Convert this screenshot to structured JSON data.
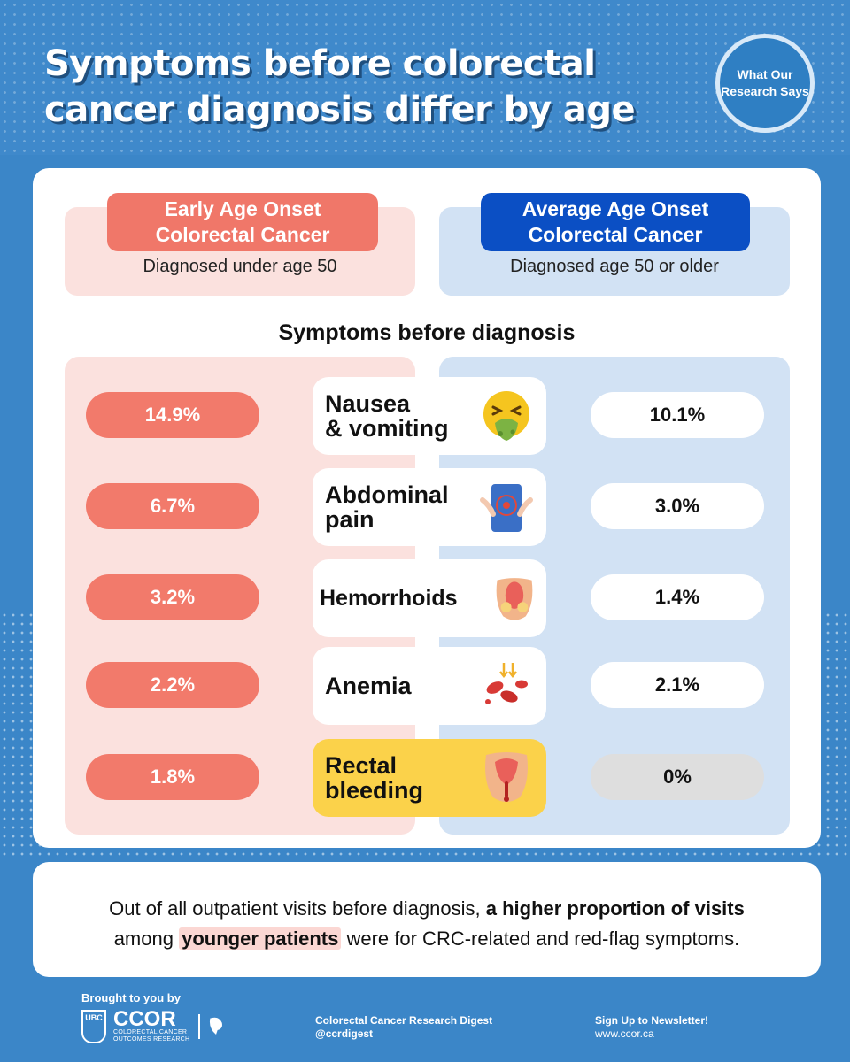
{
  "header": {
    "title_line1": "Symptoms before colorectal",
    "title_line2": "cancer diagnosis differ by age",
    "badge_line1": "What Our",
    "badge_line2": "Research Says"
  },
  "groups": {
    "left": {
      "label_line1": "Early Age Onset",
      "label_line2": "Colorectal Cancer",
      "sub": "Diagnosed under age 50"
    },
    "right": {
      "label_line1": "Average Age Onset",
      "label_line2": "Colorectal Cancer",
      "sub": "Diagnosed age 50 or older"
    }
  },
  "section_title": "Symptoms before diagnosis",
  "symptoms": [
    {
      "line1": "Nausea",
      "line2": "& vomiting",
      "early": "14.9%",
      "average": "10.1%",
      "icon": "nausea-face-icon"
    },
    {
      "line1": "Abdominal",
      "line2": "pain",
      "early": "6.7%",
      "average": "3.0%",
      "icon": "abdominal-pain-icon"
    },
    {
      "line1": "Hemorrhoids",
      "line2": "",
      "early": "3.2%",
      "average": "1.4%",
      "icon": "hemorrhoids-icon"
    },
    {
      "line1": "Anemia",
      "line2": "",
      "early": "2.2%",
      "average": "2.1%",
      "icon": "blood-cells-icon"
    },
    {
      "line1": "Rectal",
      "line2": "bleeding",
      "early": "1.8%",
      "average": "0%",
      "icon": "rectal-bleeding-icon"
    }
  ],
  "note": {
    "part1": "Out of all outpatient visits before diagnosis,",
    "bold1": "a higher proportion of visits",
    "part2": "among",
    "highlight": "younger patients",
    "part3": "were for CRC-related and red-flag symptoms."
  },
  "footer": {
    "brought": "Brought to you by",
    "ubc": "UBC",
    "ccor": "CCOR",
    "ccor_sub1": "COLORECTAL CANCER",
    "ccor_sub2": "OUTCOMES RESEARCH",
    "digest": "Colorectal Cancer Research Digest",
    "handle": "@ccrdigest",
    "signup": "Sign Up to Newsletter!",
    "url": "www.ccor.ca"
  },
  "colors": {
    "background": "#3b86c8",
    "early_accent": "#f07769",
    "average_accent": "#0b4fc4",
    "highlight": "#fbd24a"
  }
}
